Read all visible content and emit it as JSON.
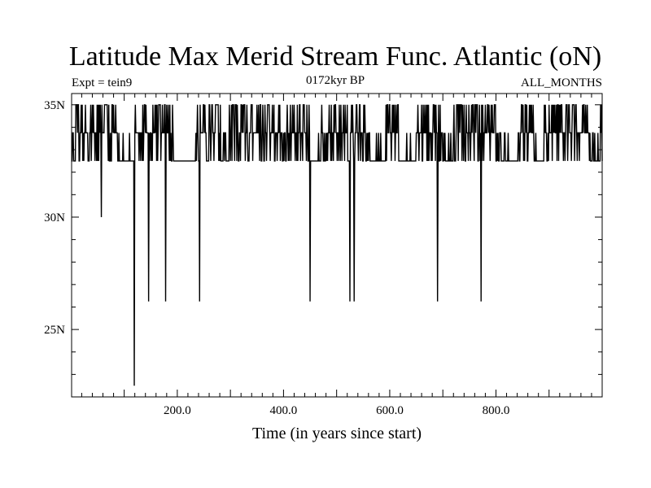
{
  "chart_data": {
    "type": "line",
    "title": "Latitude Max Merid Stream Func. Atlantic (oN)",
    "subtitle_left": "Expt = tein9",
    "subtitle_center": "0172kyr BP",
    "subtitle_right": "ALL_MONTHS",
    "xlabel": "Time (in years since start)",
    "ylabel": "",
    "xlim": [
      1,
      1000
    ],
    "ylim": [
      22,
      35.5
    ],
    "x_ticks": [
      {
        "value": 200,
        "label": "200.0"
      },
      {
        "value": 400,
        "label": "400.0"
      },
      {
        "value": 600,
        "label": "600.0"
      },
      {
        "value": 800,
        "label": "800.0"
      }
    ],
    "y_ticks": [
      {
        "value": 25,
        "label": "25N"
      },
      {
        "value": 30,
        "label": "30N"
      },
      {
        "value": 35,
        "label": "35N"
      }
    ],
    "series": [
      {
        "name": "latitude_max",
        "baseline_levels": [
          32.5,
          33.75,
          35.0
        ],
        "spikes": [
          {
            "x": 57,
            "y": 30.0
          },
          {
            "x": 119,
            "y": 22.5
          },
          {
            "x": 146,
            "y": 26.25
          },
          {
            "x": 178,
            "y": 26.25
          },
          {
            "x": 242,
            "y": 26.25
          },
          {
            "x": 450,
            "y": 26.25
          },
          {
            "x": 525,
            "y": 26.25
          },
          {
            "x": 533,
            "y": 26.25
          },
          {
            "x": 690,
            "y": 26.25
          },
          {
            "x": 772,
            "y": 26.25
          }
        ]
      }
    ]
  }
}
